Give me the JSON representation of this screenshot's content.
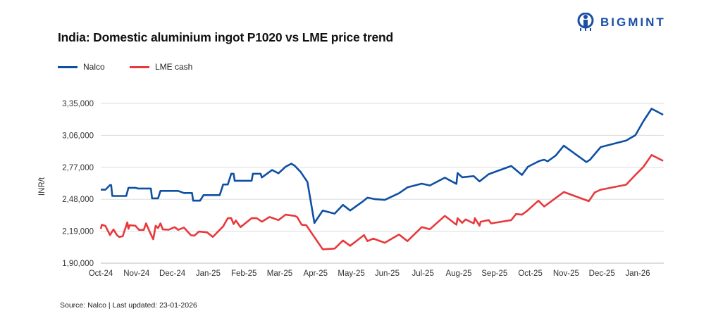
{
  "title": "India: Domestic aluminium ingot P1020 vs LME price trend",
  "logo": {
    "text": "BIGMINT",
    "color": "#1a4fa6"
  },
  "footer": "Source: Nalco | Last updated: 23-01-2026",
  "chart_data": {
    "type": "line",
    "title": "India: Domestic aluminium ingot P1020 vs LME price trend",
    "ylabel": "INR/t",
    "xlabel": "",
    "ylim": [
      190000,
      335000
    ],
    "yticks": [
      {
        "value": 190000,
        "label": "1,90,000"
      },
      {
        "value": 219000,
        "label": "2,19,000"
      },
      {
        "value": 248000,
        "label": "2,48,000"
      },
      {
        "value": 277000,
        "label": "2,77,000"
      },
      {
        "value": 306000,
        "label": "3,06,000"
      },
      {
        "value": 335000,
        "label": "3,35,000"
      }
    ],
    "xticks": [
      "Oct-24",
      "Nov-24",
      "Dec-24",
      "Jan-25",
      "Feb-25",
      "Mar-25",
      "Apr-25",
      "May-25",
      "Jun-25",
      "Jul-25",
      "Aug-25",
      "Sep-25",
      "Oct-25",
      "Nov-25",
      "Dec-25",
      "Jan-26"
    ],
    "grid": "horizontal",
    "legend_position": "top-left",
    "series": [
      {
        "name": "Nalco",
        "color": "#0f4fa3",
        "points": [
          [
            "2024-10-01",
            256700
          ],
          [
            "2024-10-05",
            256700
          ],
          [
            "2024-10-09",
            260900
          ],
          [
            "2024-10-10",
            260900
          ],
          [
            "2024-10-11",
            251000
          ],
          [
            "2024-10-23",
            251000
          ],
          [
            "2024-10-25",
            258400
          ],
          [
            "2024-10-31",
            258400
          ],
          [
            "2024-11-02",
            257800
          ],
          [
            "2024-11-13",
            257800
          ],
          [
            "2024-11-14",
            248800
          ],
          [
            "2024-11-19",
            248800
          ],
          [
            "2024-11-21",
            255600
          ],
          [
            "2024-12-06",
            255600
          ],
          [
            "2024-12-11",
            253700
          ],
          [
            "2024-12-18",
            253700
          ],
          [
            "2024-12-19",
            246700
          ],
          [
            "2024-12-25",
            246700
          ],
          [
            "2024-12-28",
            251800
          ],
          [
            "2025-01-11",
            251800
          ],
          [
            "2025-01-14",
            261400
          ],
          [
            "2025-01-18",
            261400
          ],
          [
            "2025-01-21",
            271200
          ],
          [
            "2025-01-23",
            271200
          ],
          [
            "2025-01-24",
            264800
          ],
          [
            "2025-02-07",
            264800
          ],
          [
            "2025-02-08",
            271200
          ],
          [
            "2025-02-14",
            271200
          ],
          [
            "2025-02-15",
            267800
          ],
          [
            "2025-02-23",
            274600
          ],
          [
            "2025-02-28",
            271600
          ],
          [
            "2025-03-06",
            277500
          ],
          [
            "2025-03-11",
            280300
          ],
          [
            "2025-03-14",
            278400
          ],
          [
            "2025-03-19",
            272900
          ],
          [
            "2025-03-25",
            263700
          ],
          [
            "2025-03-31",
            226500
          ],
          [
            "2025-04-07",
            237800
          ],
          [
            "2025-04-17",
            235000
          ],
          [
            "2025-04-24",
            242900
          ],
          [
            "2025-04-30",
            237800
          ],
          [
            "2025-05-11",
            246100
          ],
          [
            "2025-05-15",
            249500
          ],
          [
            "2025-05-21",
            248200
          ],
          [
            "2025-05-30",
            247400
          ],
          [
            "2025-06-11",
            253500
          ],
          [
            "2025-06-18",
            258800
          ],
          [
            "2025-06-30",
            262200
          ],
          [
            "2025-07-07",
            260500
          ],
          [
            "2025-07-20",
            267600
          ],
          [
            "2025-07-30",
            262000
          ],
          [
            "2025-07-31",
            271800
          ],
          [
            "2025-08-04",
            268000
          ],
          [
            "2025-08-14",
            269000
          ],
          [
            "2025-08-19",
            264200
          ],
          [
            "2025-08-27",
            270800
          ],
          [
            "2025-09-15",
            278200
          ],
          [
            "2025-09-24",
            270100
          ],
          [
            "2025-09-29",
            277500
          ],
          [
            "2025-10-09",
            282900
          ],
          [
            "2025-10-13",
            283900
          ],
          [
            "2025-10-16",
            282400
          ],
          [
            "2025-10-23",
            287700
          ],
          [
            "2025-10-30",
            296600
          ],
          [
            "2025-11-18",
            281800
          ],
          [
            "2025-11-21",
            283900
          ],
          [
            "2025-11-30",
            295400
          ],
          [
            "2025-12-22",
            301300
          ],
          [
            "2025-12-30",
            306200
          ],
          [
            "2026-01-06",
            319000
          ],
          [
            "2026-01-13",
            330200
          ],
          [
            "2026-01-23",
            324700
          ]
        ]
      },
      {
        "name": "LME cash",
        "color": "#e8393c",
        "points": [
          [
            "2024-10-01",
            221200
          ],
          [
            "2024-10-02",
            224900
          ],
          [
            "2024-10-05",
            223800
          ],
          [
            "2024-10-09",
            215500
          ],
          [
            "2024-10-12",
            220600
          ],
          [
            "2024-10-15",
            215500
          ],
          [
            "2024-10-17",
            213800
          ],
          [
            "2024-10-20",
            214400
          ],
          [
            "2024-10-24",
            227000
          ],
          [
            "2024-10-25",
            221200
          ],
          [
            "2024-10-26",
            224400
          ],
          [
            "2024-10-31",
            224000
          ],
          [
            "2024-11-03",
            220200
          ],
          [
            "2024-11-07",
            220200
          ],
          [
            "2024-11-09",
            226100
          ],
          [
            "2024-11-12",
            218500
          ],
          [
            "2024-11-15",
            211700
          ],
          [
            "2024-11-17",
            224000
          ],
          [
            "2024-11-19",
            221900
          ],
          [
            "2024-11-21",
            226100
          ],
          [
            "2024-11-23",
            220600
          ],
          [
            "2024-11-28",
            220400
          ],
          [
            "2024-12-03",
            222700
          ],
          [
            "2024-12-06",
            220200
          ],
          [
            "2024-12-11",
            222300
          ],
          [
            "2024-12-17",
            215500
          ],
          [
            "2024-12-20",
            214900
          ],
          [
            "2024-12-24",
            218700
          ],
          [
            "2024-12-31",
            218000
          ],
          [
            "2025-01-05",
            213800
          ],
          [
            "2025-01-11",
            220200
          ],
          [
            "2025-01-14",
            223400
          ],
          [
            "2025-01-18",
            230800
          ],
          [
            "2025-01-21",
            230800
          ],
          [
            "2025-01-23",
            225500
          ],
          [
            "2025-01-25",
            228700
          ],
          [
            "2025-01-29",
            222700
          ],
          [
            "2025-02-07",
            230800
          ],
          [
            "2025-02-11",
            230800
          ],
          [
            "2025-02-15",
            227600
          ],
          [
            "2025-02-21",
            231900
          ],
          [
            "2025-02-28",
            229100
          ],
          [
            "2025-03-06",
            234000
          ],
          [
            "2025-03-14",
            232900
          ],
          [
            "2025-03-16",
            231900
          ],
          [
            "2025-03-20",
            224900
          ],
          [
            "2025-03-24",
            224400
          ],
          [
            "2025-04-07",
            202600
          ],
          [
            "2025-04-17",
            203200
          ],
          [
            "2025-04-24",
            210600
          ],
          [
            "2025-04-30",
            205800
          ],
          [
            "2025-05-12",
            215500
          ],
          [
            "2025-05-15",
            210000
          ],
          [
            "2025-05-20",
            212300
          ],
          [
            "2025-05-30",
            208500
          ],
          [
            "2025-06-11",
            216000
          ],
          [
            "2025-06-18",
            210000
          ],
          [
            "2025-06-30",
            222700
          ],
          [
            "2025-07-07",
            220800
          ],
          [
            "2025-07-20",
            232900
          ],
          [
            "2025-07-30",
            224900
          ],
          [
            "2025-07-31",
            230800
          ],
          [
            "2025-08-04",
            226600
          ],
          [
            "2025-08-07",
            229700
          ],
          [
            "2025-08-14",
            226100
          ],
          [
            "2025-08-15",
            230800
          ],
          [
            "2025-08-19",
            224000
          ],
          [
            "2025-08-20",
            227600
          ],
          [
            "2025-08-27",
            229100
          ],
          [
            "2025-08-29",
            226100
          ],
          [
            "2025-09-15",
            229100
          ],
          [
            "2025-09-19",
            234600
          ],
          [
            "2025-09-24",
            234000
          ],
          [
            "2025-09-28",
            237200
          ],
          [
            "2025-10-08",
            246700
          ],
          [
            "2025-10-13",
            241400
          ],
          [
            "2025-10-24",
            249900
          ],
          [
            "2025-10-30",
            254600
          ],
          [
            "2025-11-20",
            246300
          ],
          [
            "2025-11-25",
            254200
          ],
          [
            "2025-11-30",
            256700
          ],
          [
            "2025-12-22",
            261200
          ],
          [
            "2025-12-30",
            270100
          ],
          [
            "2026-01-06",
            277500
          ],
          [
            "2026-01-13",
            288200
          ],
          [
            "2026-01-23",
            282900
          ]
        ]
      }
    ]
  }
}
